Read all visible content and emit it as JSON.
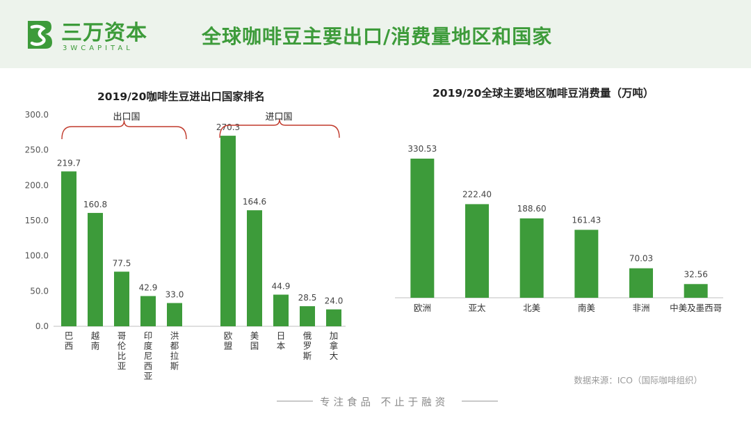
{
  "header": {
    "logo_cn": "三万资本",
    "logo_en": "3WCAPITAL",
    "title": "全球咖啡豆主要出口/消费量地区和国家"
  },
  "colors": {
    "accent": "#3d9b3a",
    "bar": "#3d9b3a",
    "bracket": "#c0392b",
    "header_bg": "#edf3ec"
  },
  "chart_data": [
    {
      "type": "bar",
      "title": "2019/20咖啡生豆进出口国家排名",
      "categories": [
        "巴西",
        "越南",
        "哥伦比亚",
        "印度尼西亚",
        "洪都拉斯",
        "欧盟",
        "美国",
        "日本",
        "俄罗斯",
        "加拿大"
      ],
      "values": [
        219.7,
        160.8,
        77.5,
        42.9,
        33.0,
        270.3,
        164.6,
        44.9,
        28.5,
        24.0
      ],
      "value_labels": [
        "219.7",
        "160.8",
        "77.5",
        "42.9",
        "33.0",
        "270.3",
        "164.6",
        "44.9",
        "28.5",
        "24.0"
      ],
      "groups": [
        {
          "label": "出口国",
          "categories": [
            "巴西",
            "越南",
            "哥伦比亚",
            "印度尼西亚",
            "洪都拉斯"
          ]
        },
        {
          "label": "进口国",
          "categories": [
            "欧盟",
            "美国",
            "日本",
            "俄罗斯",
            "加拿大"
          ]
        }
      ],
      "ylim": [
        0,
        300
      ],
      "yticks": [
        "0.0",
        "50.0",
        "100.0",
        "150.0",
        "200.0",
        "250.0",
        "300.0"
      ],
      "grid": false
    },
    {
      "type": "bar",
      "title": "2019/20全球主要地区咖啡豆消费量（万吨）",
      "categories": [
        "欧洲",
        "亚太",
        "北美",
        "南美",
        "非洲",
        "中美及墨西哥"
      ],
      "values": [
        330.53,
        222.4,
        188.6,
        161.43,
        70.03,
        32.56
      ],
      "value_labels": [
        "330.53",
        "222.40",
        "188.60",
        "161.43",
        "70.03",
        "32.56"
      ],
      "ylim": [
        0,
        330.53
      ],
      "grid": false
    }
  ],
  "source": "数据来源：ICO（国际咖啡组织）",
  "footer": "专注食品   不止于融资"
}
